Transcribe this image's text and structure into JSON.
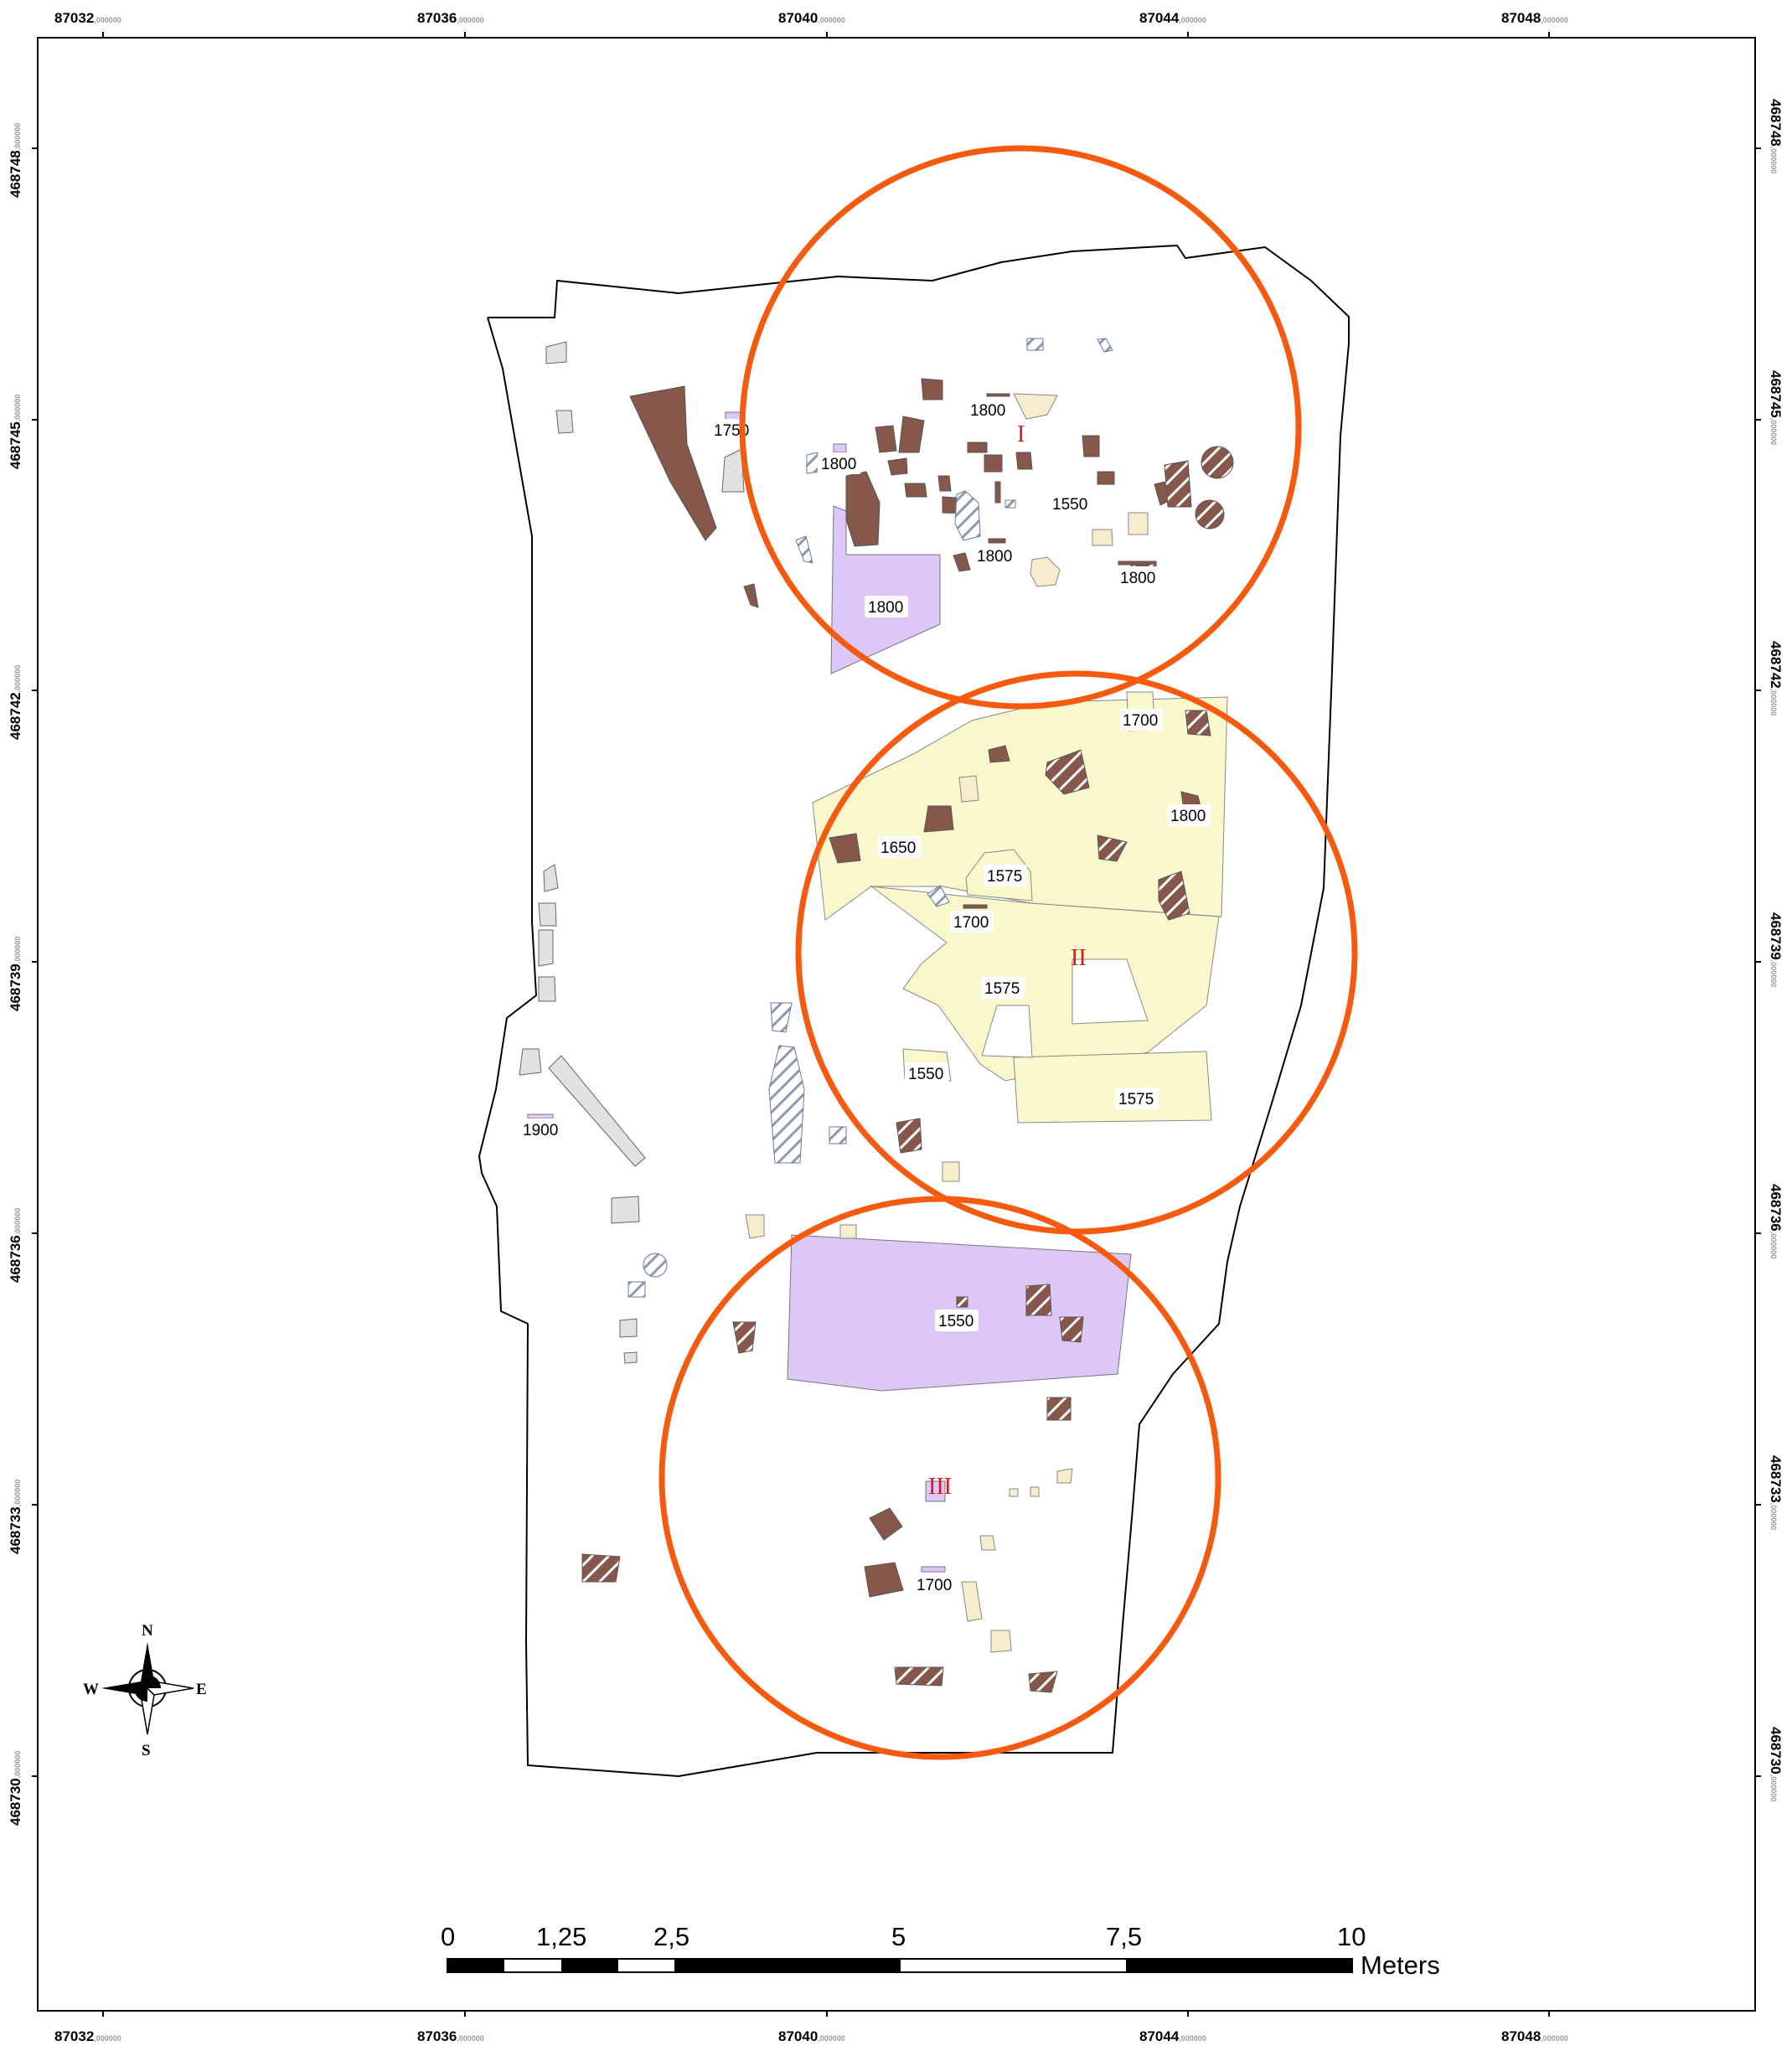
{
  "grid": {
    "x_labels": [
      {
        "main": "87032",
        "dec": ",000000"
      },
      {
        "main": "87036",
        "dec": ",000000"
      },
      {
        "main": "87040",
        "dec": ",000000"
      },
      {
        "main": "87044",
        "dec": ",000000"
      },
      {
        "main": "87048",
        "dec": ",000000"
      }
    ],
    "y_labels": [
      {
        "main": "468748",
        "dec": ",000000"
      },
      {
        "main": "468745",
        "dec": ",000000"
      },
      {
        "main": "468742",
        "dec": ",000000"
      },
      {
        "main": "468739",
        "dec": ",000000"
      },
      {
        "main": "468736",
        "dec": ",000000"
      },
      {
        "main": "468733",
        "dec": ",000000"
      },
      {
        "main": "468730",
        "dec": ",000000"
      }
    ]
  },
  "zones": {
    "z1": "I",
    "z2": "II",
    "z3": "III"
  },
  "features": {
    "f1": "1750",
    "f2": "1800",
    "f3": "1800",
    "f4": "1550",
    "f5": "1800",
    "f6": "1800",
    "f7": "1800",
    "f8": "1700",
    "f9": "1800",
    "f10": "1650",
    "f11": "1575",
    "f12": "1700",
    "f13": "1575",
    "f14": "1550",
    "f15": "1575",
    "f16": "1900",
    "f17": "1550",
    "f18": "1700"
  },
  "scale_bar": {
    "ticks": [
      "0",
      "1,25",
      "2,5",
      "5",
      "7,5",
      "10"
    ],
    "unit": "Meters"
  },
  "compass": {
    "n": "N",
    "s": "S",
    "e": "E",
    "w": "W"
  },
  "colors": {
    "circle": "#f55a0f",
    "brown": "#86574a",
    "yellow": "#f8f8cc",
    "cream": "#f7eccb",
    "lilac": "#ddc7f8",
    "grey": "#e1e1e1",
    "hatch_blue": "#8a98b2",
    "zone_label": "#e0161b"
  }
}
